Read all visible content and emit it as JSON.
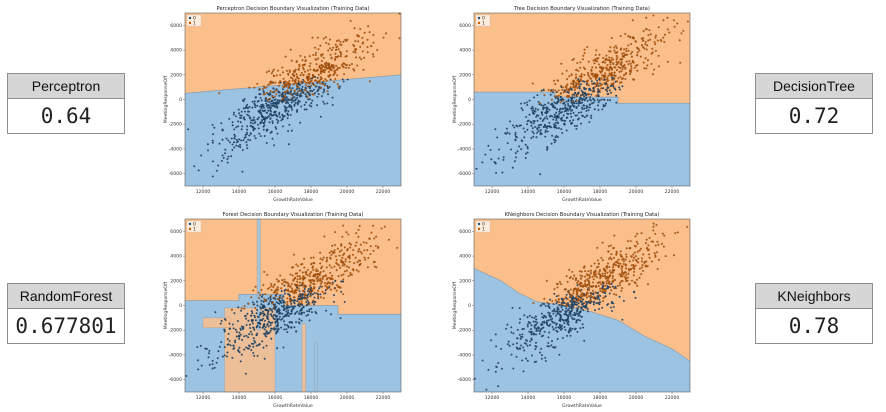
{
  "metrics": {
    "perceptron": {
      "label": "Perceptron",
      "value": "0.64"
    },
    "decisiontree": {
      "label": "DecisionTree",
      "value": "0.72"
    },
    "randomforest": {
      "label": "RandomForest",
      "value": "0.677801"
    },
    "kneighbors": {
      "label": "KNeighbors",
      "value": "0.78"
    }
  },
  "colors": {
    "region_class0": "#9dc3e3",
    "region_class1": "#fbbf8c",
    "points_class0": "#1f4e79",
    "points_class1": "#c65a00"
  },
  "chart_data": [
    {
      "type": "scatter",
      "title": "Perceptron Decision Boundary Visualization (Training Data)",
      "xlabel": "GrowthRateValue",
      "ylabel": "MeetingResponseOff",
      "legend": {
        "placement": "top-left",
        "entries": [
          "0",
          "1"
        ]
      },
      "xticks": [
        "12000",
        "14000",
        "16000",
        "18000",
        "20000",
        "22000"
      ],
      "yticks": [
        "6000",
        "4000",
        "2000",
        "0",
        "-2000",
        "-4000",
        "-6000"
      ],
      "xlim": [
        11000,
        23000
      ],
      "ylim": [
        -7000,
        7000
      ],
      "boundary": {
        "kind": "line",
        "points": [
          [
            11000,
            500
          ],
          [
            23000,
            2000
          ]
        ]
      }
    },
    {
      "type": "scatter",
      "title": "Tree Decision Boundary Visualization (Training Data)",
      "xlabel": "GrowthRateValue",
      "ylabel": "MeetingResponseOff",
      "legend": {
        "placement": "top-left",
        "entries": [
          "0",
          "1"
        ]
      },
      "xticks": [
        "12000",
        "14000",
        "16000",
        "18000",
        "20000",
        "22000"
      ],
      "yticks": [
        "6000",
        "4000",
        "2000",
        "0",
        "-2000",
        "-4000",
        "-6000"
      ],
      "xlim": [
        11000,
        23000
      ],
      "ylim": [
        -7000,
        7000
      ],
      "boundary": {
        "kind": "steps",
        "points": [
          [
            11000,
            600
          ],
          [
            15500,
            600
          ],
          [
            15500,
            200
          ],
          [
            19000,
            200
          ],
          [
            19000,
            -300
          ],
          [
            23000,
            -300
          ]
        ]
      }
    },
    {
      "type": "scatter",
      "title": "Forest Decision Boundary Visualization (Training Data)",
      "xlabel": "GrowthRateValue",
      "ylabel": "MeetingResponseOff",
      "legend": {
        "placement": "top-left",
        "entries": [
          "0",
          "1"
        ]
      },
      "xticks": [
        "12000",
        "14000",
        "16000",
        "18000",
        "20000",
        "22000"
      ],
      "yticks": [
        "6000",
        "4000",
        "2000",
        "0",
        "-2000",
        "-4000",
        "-6000"
      ],
      "xlim": [
        11000,
        23000
      ],
      "ylim": [
        -7000,
        7000
      ],
      "boundary": {
        "kind": "steps",
        "points": [
          [
            11000,
            400
          ],
          [
            14000,
            400
          ],
          [
            14000,
            900
          ],
          [
            16500,
            900
          ],
          [
            16500,
            0
          ],
          [
            19500,
            0
          ],
          [
            19500,
            -700
          ],
          [
            23000,
            -700
          ]
        ]
      }
    },
    {
      "type": "scatter",
      "title": "KNeighbors Decision Boundary Visualization (Training Data)",
      "xlabel": "GrowthRateValue",
      "ylabel": "MeetingResponseOff",
      "legend": {
        "placement": "top-left",
        "entries": [
          "0",
          "1"
        ]
      },
      "xticks": [
        "12000",
        "14000",
        "16000",
        "18000",
        "20000",
        "22000"
      ],
      "yticks": [
        "6000",
        "4000",
        "2000",
        "0",
        "-2000",
        "-4000",
        "-6000"
      ],
      "xlim": [
        11000,
        23000
      ],
      "ylim": [
        -7000,
        7000
      ],
      "boundary": {
        "kind": "curve",
        "points": [
          [
            11000,
            3000
          ],
          [
            12500,
            2000
          ],
          [
            13500,
            1000
          ],
          [
            14500,
            300
          ],
          [
            16000,
            0
          ],
          [
            17500,
            -500
          ],
          [
            19000,
            -1200
          ],
          [
            20500,
            -2500
          ],
          [
            22000,
            -3500
          ],
          [
            23000,
            -4500
          ]
        ]
      }
    }
  ]
}
